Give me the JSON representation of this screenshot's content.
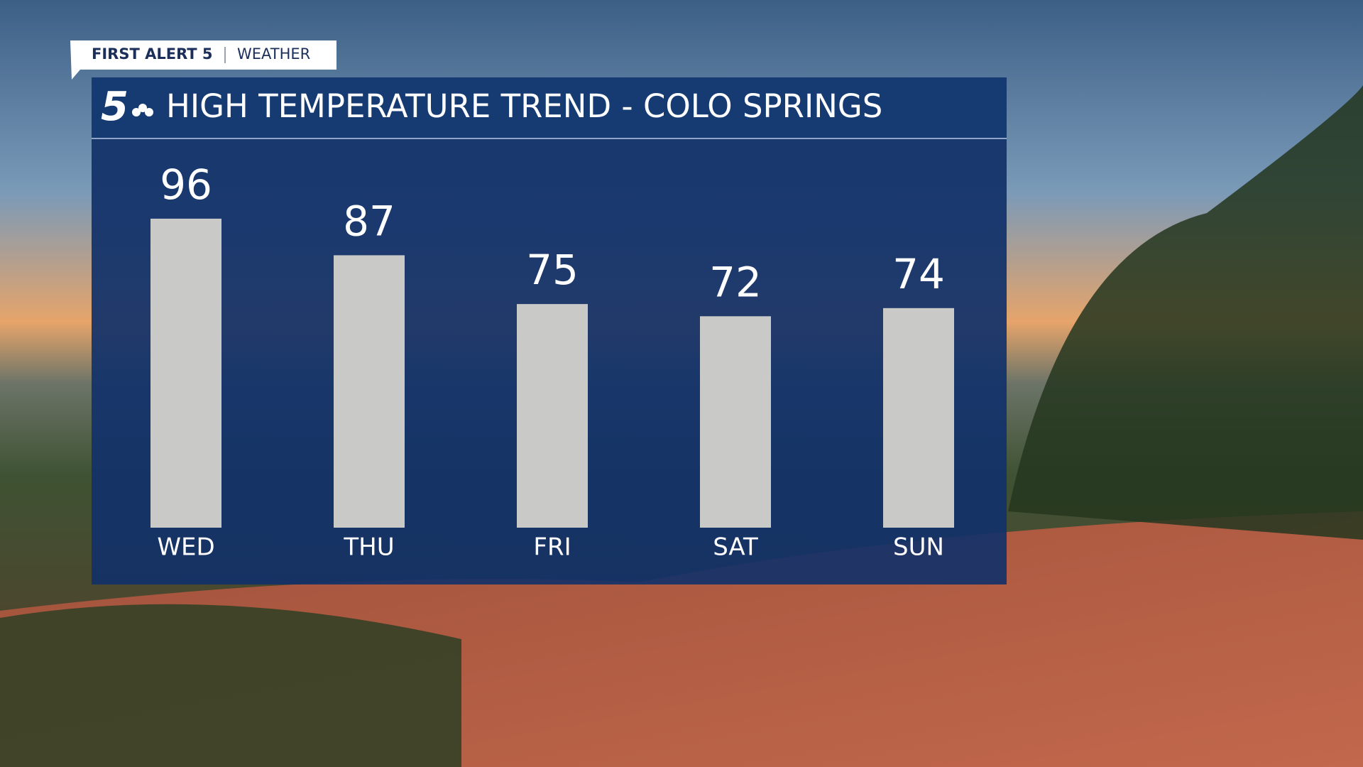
{
  "header": {
    "brand": "FIRST ALERT 5",
    "section": "WEATHER",
    "logo": "5"
  },
  "chart_data": {
    "type": "bar",
    "title": "HIGH TEMPERATURE TREND - COLO SPRINGS",
    "categories": [
      "WED",
      "THU",
      "FRI",
      "SAT",
      "SUN"
    ],
    "values": [
      96,
      87,
      75,
      72,
      74
    ],
    "color": "#c9c9c7",
    "ylim": [
      20,
      100
    ]
  }
}
